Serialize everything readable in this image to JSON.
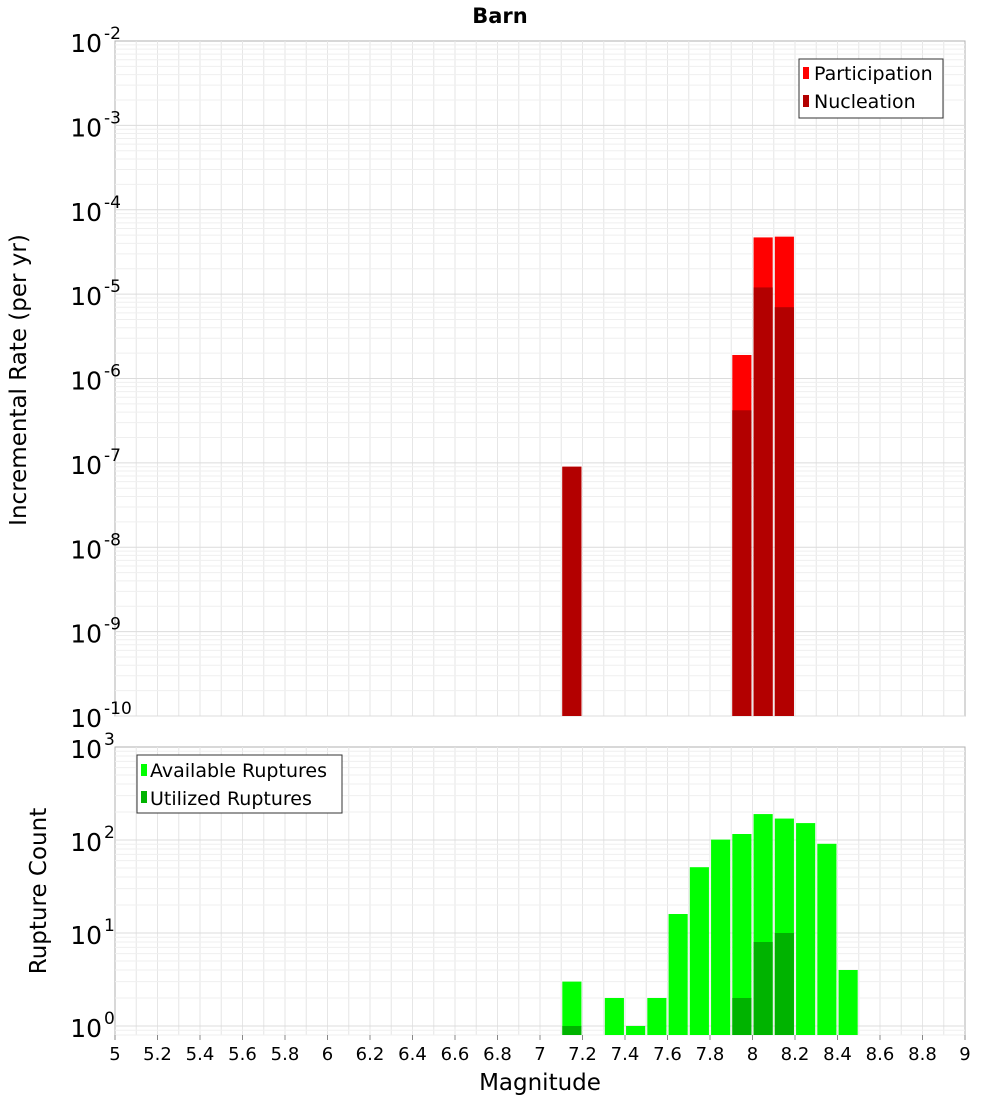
{
  "chart_data": [
    {
      "type": "bar",
      "title": "Barn",
      "xlabel": "",
      "ylabel": "Incremental Rate (per yr)",
      "yscale": "log",
      "ylim": [
        1e-10,
        0.01
      ],
      "xlim": [
        5,
        9
      ],
      "y_tick_exponents": [
        -10,
        -9,
        -8,
        -7,
        -6,
        -5,
        -4,
        -3,
        -2
      ],
      "grid": true,
      "legend": {
        "position": "top-right",
        "entries": [
          {
            "label": "Participation",
            "color": "#ff0000"
          },
          {
            "label": "Nucleation",
            "color": "#b30000"
          }
        ]
      },
      "series": [
        {
          "name": "Participation",
          "color": "#ff0000",
          "points": [
            {
              "x": 7.15,
              "y": 9e-08
            },
            {
              "x": 7.95,
              "y": 1.9e-06
            },
            {
              "x": 8.05,
              "y": 4.7e-05
            },
            {
              "x": 8.15,
              "y": 4.8e-05
            }
          ]
        },
        {
          "name": "Nucleation",
          "color": "#b30000",
          "points": [
            {
              "x": 7.15,
              "y": 9e-08
            },
            {
              "x": 7.95,
              "y": 4.2e-07
            },
            {
              "x": 8.05,
              "y": 1.2e-05
            },
            {
              "x": 8.15,
              "y": 7e-06
            }
          ]
        }
      ]
    },
    {
      "type": "bar",
      "xlabel": "Magnitude",
      "ylabel": "Rupture Count",
      "yscale": "log",
      "ylim": [
        0.8,
        1000
      ],
      "xlim": [
        5,
        9
      ],
      "y_tick_exponents": [
        0,
        1,
        2,
        3
      ],
      "x_ticks": [
        "5",
        "5.2",
        "5.4",
        "5.6",
        "5.8",
        "6",
        "6.2",
        "6.4",
        "6.6",
        "6.8",
        "7",
        "7.2",
        "7.4",
        "7.6",
        "7.8",
        "8",
        "8.2",
        "8.4",
        "8.6",
        "8.8",
        "9"
      ],
      "grid": true,
      "legend": {
        "position": "top-left",
        "entries": [
          {
            "label": "Available Ruptures",
            "color": "#00ff00"
          },
          {
            "label": "Utilized Ruptures",
            "color": "#00b300"
          }
        ]
      },
      "series": [
        {
          "name": "Available Ruptures",
          "color": "#00ff00",
          "points": [
            {
              "x": 7.15,
              "y": 3
            },
            {
              "x": 7.35,
              "y": 2
            },
            {
              "x": 7.45,
              "y": 1
            },
            {
              "x": 7.55,
              "y": 2
            },
            {
              "x": 7.65,
              "y": 16
            },
            {
              "x": 7.75,
              "y": 51
            },
            {
              "x": 7.85,
              "y": 101
            },
            {
              "x": 7.95,
              "y": 116
            },
            {
              "x": 8.05,
              "y": 190
            },
            {
              "x": 8.15,
              "y": 170
            },
            {
              "x": 8.25,
              "y": 152
            },
            {
              "x": 8.35,
              "y": 91
            },
            {
              "x": 8.45,
              "y": 4
            }
          ]
        },
        {
          "name": "Utilized Ruptures",
          "color": "#00b300",
          "points": [
            {
              "x": 7.15,
              "y": 1
            },
            {
              "x": 7.95,
              "y": 2
            },
            {
              "x": 8.05,
              "y": 8
            },
            {
              "x": 8.15,
              "y": 10
            }
          ]
        }
      ]
    }
  ]
}
